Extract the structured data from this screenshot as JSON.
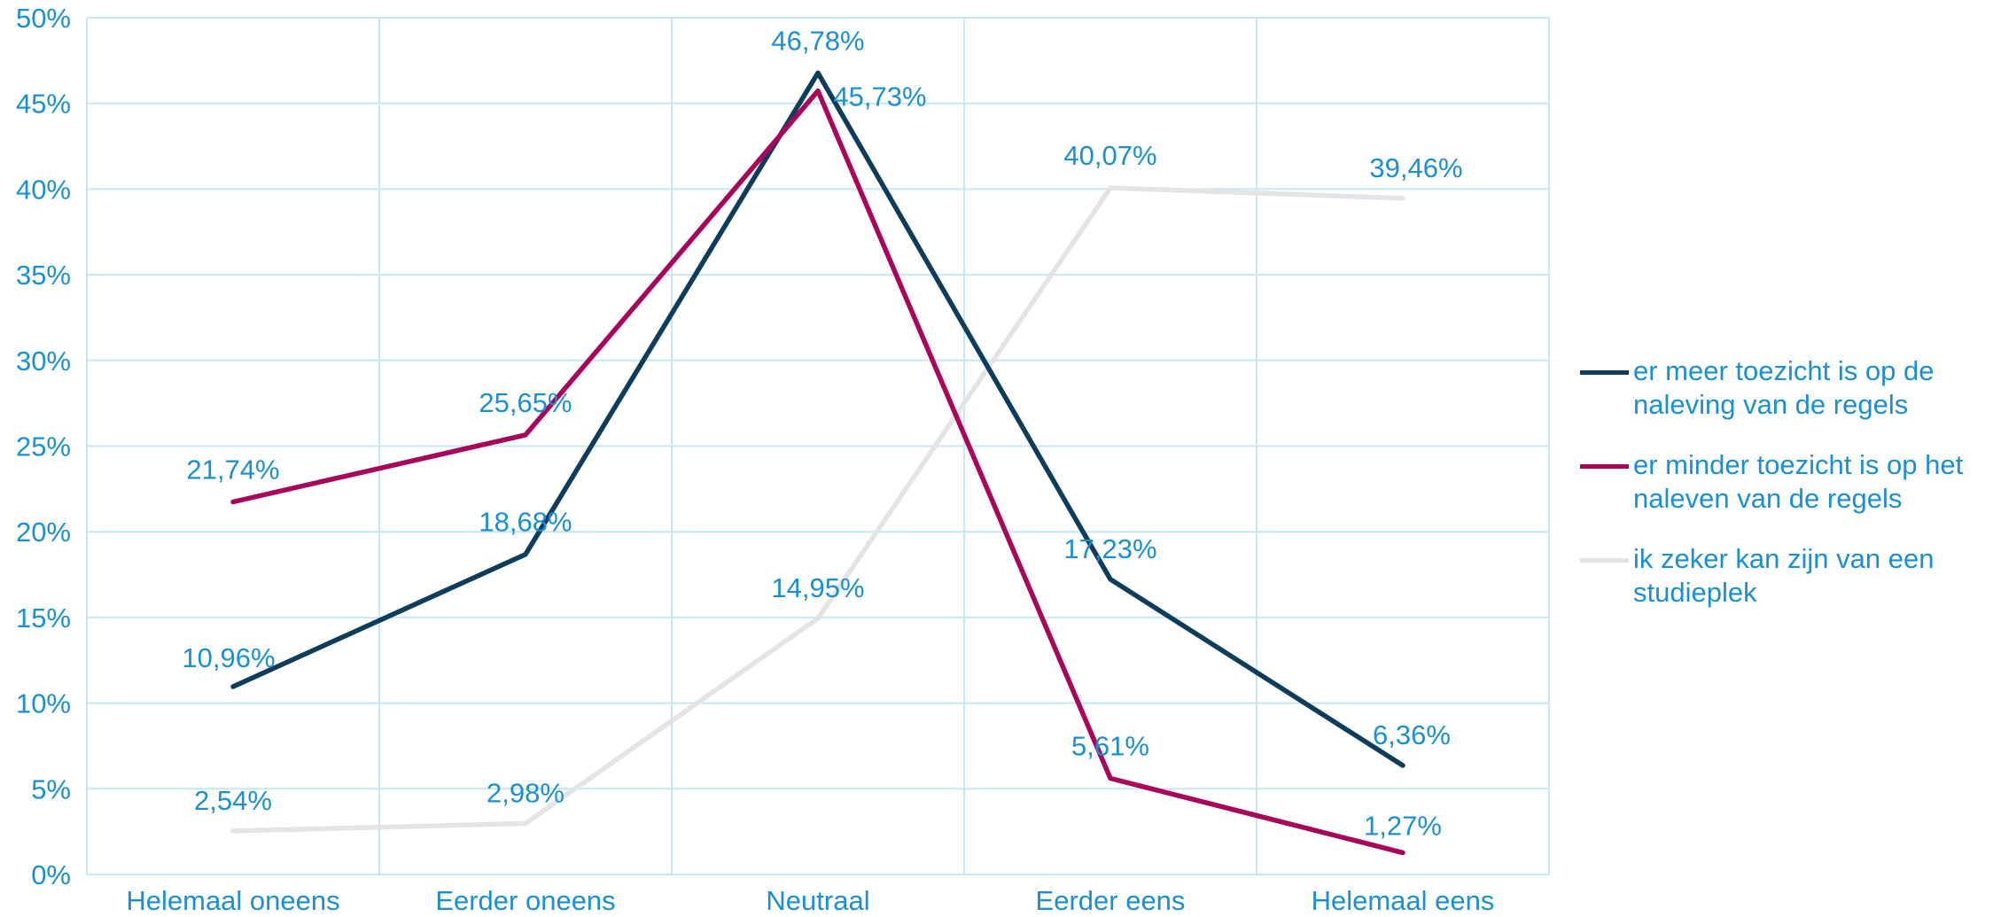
{
  "chart_data": {
    "type": "line",
    "categories": [
      "Helemaal oneens",
      "Eerder oneens",
      "Neutraal",
      "Eerder eens",
      "Helemaal eens"
    ],
    "ylim": [
      0,
      50
    ],
    "y_ticks": [
      "0%",
      "5%",
      "10%",
      "15%",
      "20%",
      "25%",
      "30%",
      "35%",
      "40%",
      "45%",
      "50%"
    ],
    "grid": true,
    "legend_position": "right",
    "series": [
      {
        "name": "er meer toezicht is op de naleving van de regels",
        "color": "#0e3d5c",
        "values": [
          10.96,
          18.68,
          46.78,
          17.23,
          6.36
        ],
        "labels": [
          "10,96%",
          "18,68%",
          "46,78%",
          "17,23%",
          "6,36%"
        ]
      },
      {
        "name": "er minder toezicht is op het naleven van de regels",
        "color": "#a8065a",
        "values": [
          21.74,
          25.65,
          45.73,
          5.61,
          1.27
        ],
        "labels": [
          "21,74%",
          "25,65%",
          "45,73%",
          "5,61%",
          "1,27%"
        ]
      },
      {
        "name": "ik zeker kan zijn van een studieplek",
        "color": "#e4e4e4",
        "values": [
          2.54,
          2.98,
          14.95,
          40.07,
          39.46
        ],
        "labels": [
          "2,54%",
          "2,98%",
          "14,95%",
          "40,07%",
          "39,46%"
        ]
      }
    ]
  }
}
